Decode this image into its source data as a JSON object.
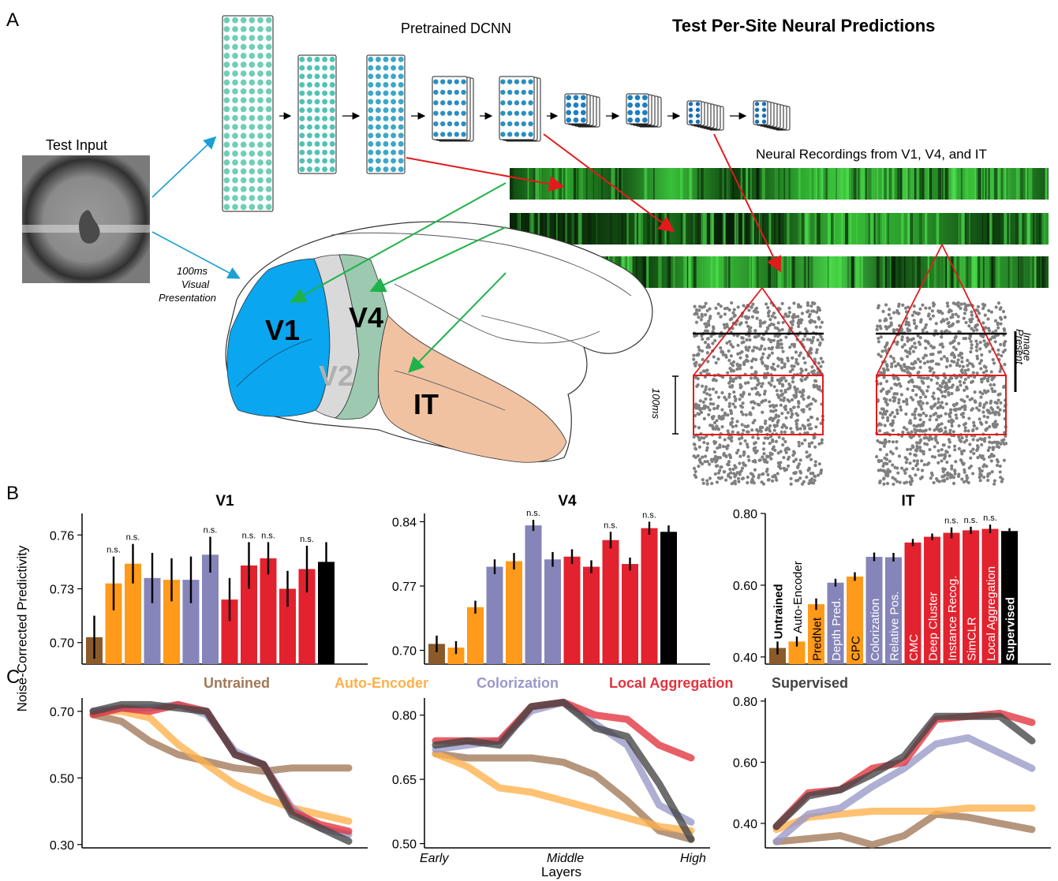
{
  "panel_a": {
    "letter": "A",
    "title": "Test Per-Site Neural Predictions",
    "dcnn_label": "Pretrained DCNN",
    "test_input_label": "Test Input",
    "presentation_line1": "100ms",
    "presentation_line2": "Visual",
    "presentation_line3": "Presentation",
    "recordings_label": "Neural Recordings from V1, V4, and IT",
    "area_v1": "V1",
    "area_v2": "V2",
    "area_v4": "V4",
    "area_it": "IT",
    "raster_time_label": "100ms",
    "image_present_line1": "Image",
    "image_present_line2": "Present",
    "colors": {
      "v1": "#0aa6ef",
      "v2": "#d9d9d9",
      "v4": "#9cc9b0",
      "it": "#f0c2a2",
      "arrow_red": "#e31a1c",
      "arrow_green": "#1fb24a",
      "arrow_blue": "#1b9fd4"
    }
  },
  "panel_b": {
    "letter": "B",
    "ylabel": "Noise-Corrected Predictivity",
    "ns_label": "n.s.",
    "colors": {
      "Untrained": "#8b5a2b",
      "Auto-Encoder": "#ff9a1a",
      "Contrastive": "#8585ba",
      "Local Aggregation": "#e2222e",
      "Supervised": "#000000"
    }
  },
  "panel_c": {
    "letter": "C",
    "xlabel": "Layers",
    "x_ticks": [
      "Early",
      "Middle",
      "High"
    ],
    "legend": [
      {
        "name": "Untrained",
        "color": "#a07858"
      },
      {
        "name": "Auto-Encoder",
        "color": "#ffb04a"
      },
      {
        "name": "Colorization",
        "color": "#9898c8"
      },
      {
        "name": "Local Aggregation",
        "color": "#e2323e"
      },
      {
        "name": "Supervised",
        "color": "#444444"
      }
    ]
  },
  "chart_data": [
    {
      "type": "bar",
      "title": "V1",
      "ylim": [
        0.688,
        0.772
      ],
      "yticks": [
        0.7,
        0.73,
        0.76
      ],
      "groups": [
        "Untrained",
        "Auto-Encoder",
        "Auto-Encoder",
        "Contrastive",
        "Auto-Encoder",
        "Contrastive",
        "Contrastive",
        "Local Aggregation",
        "Local Aggregation",
        "Local Aggregation",
        "Local Aggregation",
        "Local Aggregation",
        "Supervised"
      ],
      "values": [
        0.703,
        0.733,
        0.744,
        0.736,
        0.735,
        0.735,
        0.749,
        0.724,
        0.743,
        0.747,
        0.73,
        0.741,
        0.745
      ],
      "errors": [
        0.012,
        0.015,
        0.011,
        0.014,
        0.012,
        0.013,
        0.01,
        0.012,
        0.013,
        0.009,
        0.01,
        0.013,
        0.011
      ],
      "ns": [
        false,
        true,
        true,
        false,
        false,
        false,
        true,
        false,
        true,
        true,
        false,
        true,
        false
      ]
    },
    {
      "type": "bar",
      "title": "V4",
      "ylim": [
        0.685,
        0.849
      ],
      "yticks": [
        0.7,
        0.77,
        0.84
      ],
      "groups": [
        "Untrained",
        "Auto-Encoder",
        "Auto-Encoder",
        "Contrastive",
        "Auto-Encoder",
        "Contrastive",
        "Contrastive",
        "Local Aggregation",
        "Local Aggregation",
        "Local Aggregation",
        "Local Aggregation",
        "Local Aggregation",
        "Supervised"
      ],
      "values": [
        0.707,
        0.703,
        0.747,
        0.791,
        0.797,
        0.836,
        0.799,
        0.802,
        0.791,
        0.82,
        0.794,
        0.833,
        0.829
      ],
      "errors": [
        0.009,
        0.007,
        0.007,
        0.008,
        0.009,
        0.006,
        0.008,
        0.008,
        0.007,
        0.009,
        0.007,
        0.007,
        0.007
      ],
      "ns": [
        false,
        false,
        false,
        false,
        false,
        true,
        false,
        false,
        false,
        true,
        false,
        true,
        false
      ]
    },
    {
      "type": "bar",
      "title": "IT",
      "ylim": [
        0.38,
        0.8
      ],
      "yticks": [
        0.4,
        0.6,
        0.8
      ],
      "categories": [
        "Untrained",
        "Auto-Encoder",
        "PredNet",
        "Depth Pred.",
        "CPC",
        "Colorization",
        "Relative Pos.",
        "CMC",
        "Deep Cluster",
        "Instance Recog.",
        "SimCLR",
        "Local Aggregation",
        "Supervised"
      ],
      "groups": [
        "Untrained",
        "Auto-Encoder",
        "Auto-Encoder",
        "Contrastive",
        "Auto-Encoder",
        "Contrastive",
        "Contrastive",
        "Local Aggregation",
        "Local Aggregation",
        "Local Aggregation",
        "Local Aggregation",
        "Local Aggregation",
        "Supervised"
      ],
      "values": [
        0.425,
        0.443,
        0.547,
        0.607,
        0.624,
        0.679,
        0.678,
        0.719,
        0.735,
        0.746,
        0.753,
        0.757,
        0.751
      ],
      "errors": [
        0.018,
        0.014,
        0.016,
        0.011,
        0.012,
        0.012,
        0.012,
        0.01,
        0.009,
        0.015,
        0.01,
        0.012,
        0.008
      ],
      "ns": [
        false,
        false,
        false,
        false,
        false,
        false,
        false,
        false,
        false,
        true,
        true,
        true,
        false
      ]
    },
    {
      "type": "line",
      "area": "V1",
      "ylim": [
        0.29,
        0.74
      ],
      "yticks": [
        0.3,
        0.5,
        0.7
      ],
      "series": [
        {
          "name": "Untrained",
          "values": [
            0.69,
            0.67,
            0.61,
            0.57,
            0.55,
            0.53,
            0.52,
            0.53,
            0.53,
            0.53
          ]
        },
        {
          "name": "Auto-Encoder",
          "values": [
            0.7,
            0.7,
            0.68,
            0.6,
            0.54,
            0.48,
            0.44,
            0.41,
            0.39,
            0.37
          ]
        },
        {
          "name": "Colorization",
          "values": [
            0.7,
            0.71,
            0.71,
            0.72,
            0.69,
            0.58,
            0.54,
            0.41,
            0.35,
            0.33
          ]
        },
        {
          "name": "Local Aggregation",
          "values": [
            0.69,
            0.71,
            0.7,
            0.72,
            0.7,
            0.57,
            0.54,
            0.4,
            0.36,
            0.34
          ]
        },
        {
          "name": "Supervised",
          "values": [
            0.7,
            0.72,
            0.72,
            0.71,
            0.7,
            0.57,
            0.54,
            0.39,
            0.35,
            0.31
          ]
        }
      ]
    },
    {
      "type": "line",
      "area": "V4",
      "ylim": [
        0.49,
        0.84
      ],
      "yticks": [
        0.5,
        0.65,
        0.8
      ],
      "series": [
        {
          "name": "Untrained",
          "values": [
            0.71,
            0.7,
            0.7,
            0.7,
            0.69,
            0.66,
            0.6,
            0.53,
            0.51
          ]
        },
        {
          "name": "Auto-Encoder",
          "values": [
            0.71,
            0.68,
            0.63,
            0.62,
            0.6,
            0.58,
            0.56,
            0.54,
            0.53
          ]
        },
        {
          "name": "Colorization",
          "values": [
            0.72,
            0.73,
            0.74,
            0.81,
            0.83,
            0.78,
            0.73,
            0.59,
            0.55
          ]
        },
        {
          "name": "Local Aggregation",
          "values": [
            0.74,
            0.74,
            0.74,
            0.82,
            0.83,
            0.8,
            0.79,
            0.73,
            0.7
          ]
        },
        {
          "name": "Supervised",
          "values": [
            0.73,
            0.74,
            0.73,
            0.82,
            0.83,
            0.77,
            0.75,
            0.64,
            0.51
          ]
        }
      ]
    },
    {
      "type": "line",
      "area": "IT",
      "ylim": [
        0.32,
        0.81
      ],
      "yticks": [
        0.4,
        0.6,
        0.8
      ],
      "series": [
        {
          "name": "Untrained",
          "values": [
            0.34,
            0.35,
            0.36,
            0.33,
            0.36,
            0.43,
            0.42,
            0.4,
            0.38
          ]
        },
        {
          "name": "Auto-Encoder",
          "values": [
            0.38,
            0.42,
            0.43,
            0.44,
            0.44,
            0.44,
            0.45,
            0.45,
            0.45
          ]
        },
        {
          "name": "Colorization",
          "values": [
            0.34,
            0.43,
            0.45,
            0.52,
            0.58,
            0.66,
            0.68,
            0.63,
            0.58
          ]
        },
        {
          "name": "Local Aggregation",
          "values": [
            0.39,
            0.5,
            0.51,
            0.58,
            0.6,
            0.74,
            0.75,
            0.76,
            0.73
          ]
        },
        {
          "name": "Supervised",
          "values": [
            0.39,
            0.49,
            0.51,
            0.56,
            0.62,
            0.75,
            0.75,
            0.75,
            0.67
          ]
        }
      ]
    }
  ]
}
